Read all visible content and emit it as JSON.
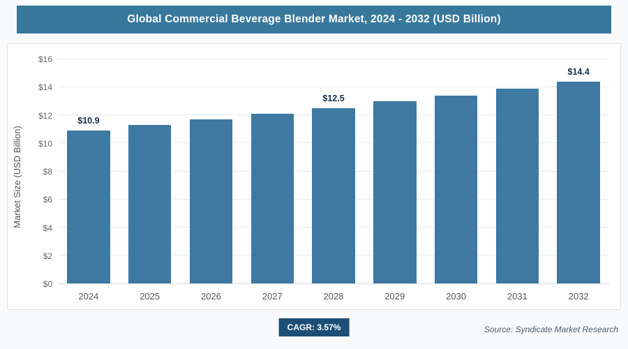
{
  "header": {
    "title": "Global Commercial Beverage Blender Market, 2024 - 2032 (USD Billion)"
  },
  "chart_data": {
    "type": "bar",
    "title": "Global Commercial Beverage Blender Market, 2024 - 2032 (USD Billion)",
    "categories": [
      "2024",
      "2025",
      "2026",
      "2027",
      "2028",
      "2029",
      "2030",
      "2031",
      "2032"
    ],
    "values": [
      10.9,
      11.3,
      11.7,
      12.1,
      12.5,
      13.0,
      13.4,
      13.9,
      14.4
    ],
    "point_labels": {
      "2024": "$10.9",
      "2028": "$12.5",
      "2032": "$14.4"
    },
    "xlabel": "",
    "ylabel": "Market Size (USD Billion)",
    "ylim": [
      0,
      16
    ],
    "ytick_step": 2,
    "ytick_prefix": "$",
    "grid": "horizontal",
    "legend": "none"
  },
  "footer": {
    "cagr_label": "CAGR: 3.57%",
    "source": "Source: Syndicate Market Research"
  },
  "colors": {
    "header_bg": "#37789c",
    "bar": "#3e79a1",
    "cagr_bg": "#1d4f76",
    "value_label_text": "#16324c"
  }
}
